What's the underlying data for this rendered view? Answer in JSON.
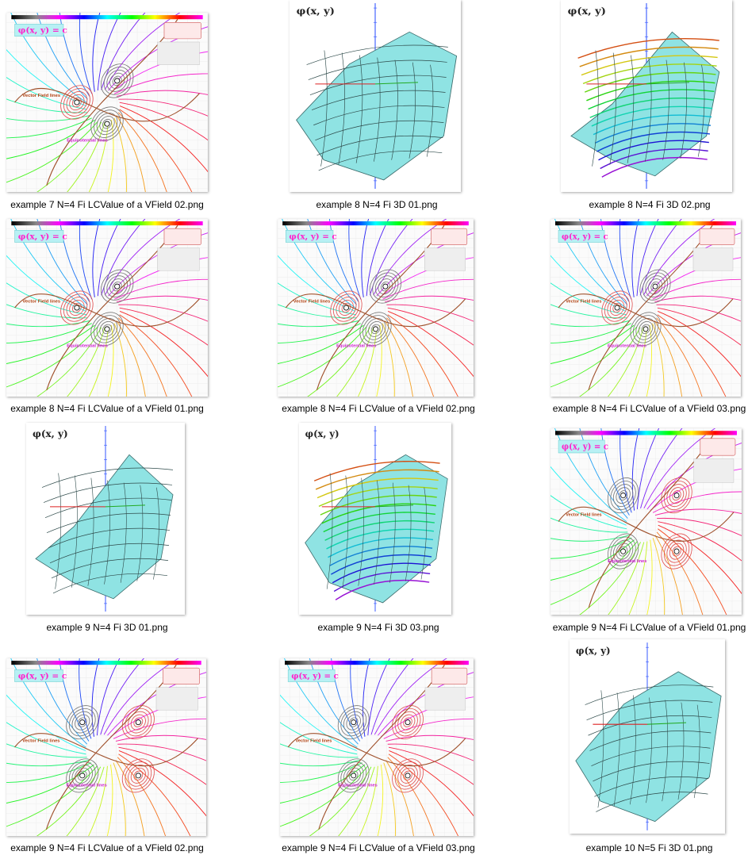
{
  "files": [
    {
      "name": "example 7 N=4  Fi LCValue of a VField 02.png",
      "kind": "field",
      "badge_formula": "φ(x, y) = c",
      "label_vector": "Vector Field lines",
      "label_equipotential": "Equipotential lines"
    },
    {
      "name": "example 8  N=4  Fi 3D 01.png",
      "kind": "surface-plain",
      "axis_label": "φ(x, y)"
    },
    {
      "name": "example 8  N=4  Fi 3D 02.png",
      "kind": "surface-color",
      "axis_label": "φ(x, y)"
    },
    {
      "name": "example 8 N=4  Fi LCValue of a VField 01.png",
      "kind": "field",
      "badge_formula": "φ(x, y) = c",
      "label_vector": "Vector Field lines",
      "label_equipotential": "Equipotential lines"
    },
    {
      "name": "example 8 N=4  Fi LCValue of a VField 02.png",
      "kind": "field",
      "badge_formula": "φ(x, y) = c",
      "label_vector": "Vector Field lines",
      "label_equipotential": "Equipotential lines"
    },
    {
      "name": "example 8 N=4  Fi LCValue of a VField 03.png",
      "kind": "field",
      "badge_formula": "φ(x, y) = c",
      "label_vector": "Vector Field lines",
      "label_equipotential": "Equipotential lines"
    },
    {
      "name": "example 9  N=4  Fi 3D 01.png",
      "kind": "surface-plain",
      "axis_label": "φ(x, y)"
    },
    {
      "name": "example 9  N=4  Fi 3D 03.png",
      "kind": "surface-color",
      "axis_label": "φ(x, y)"
    },
    {
      "name": "example 9 N=4  Fi LCValue of a VField 01.png",
      "kind": "field",
      "badge_formula": "φ(x, y) = c",
      "label_vector": "Vector Field lines",
      "label_equipotential": "Equipotential lines"
    },
    {
      "name": "example 9 N=4  Fi LCValue of a VField 02.png",
      "kind": "field",
      "badge_formula": "φ(x, y) = c",
      "label_vector": "Vector Field lines",
      "label_equipotential": "Equipotential lines"
    },
    {
      "name": "example 9 N=4  Fi LCValue of a VField 03.png",
      "kind": "field",
      "badge_formula": "φ(x, y) = c",
      "label_vector": "Vector Field lines",
      "label_equipotential": "Equipotential lines"
    },
    {
      "name": "example 10  N=5  Fi 3D 01.png",
      "kind": "surface-plain",
      "axis_label": "φ(x, y)"
    }
  ],
  "colors": {
    "badge_bg": "#b8f0f4",
    "badge_text": "#ff22cc",
    "surface_fill": "#8fe3e3",
    "mesh_line": "#2e4a4a",
    "axis_blue": "#3355ff"
  }
}
